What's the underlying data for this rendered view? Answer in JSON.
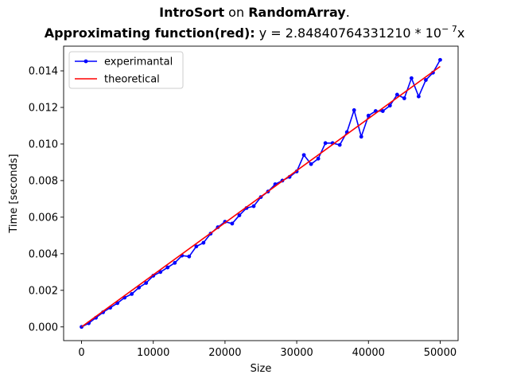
{
  "title": {
    "line1_bold_a": "IntroSort",
    "line1_plain": " on ",
    "line1_bold_b": "RandomArray",
    "line1_end": ".",
    "line2_bold": "Approximating function(red):",
    "line2_plain": " y = 2.84840764331210 * 10",
    "line2_exponent": "− 7",
    "line2_end": "x"
  },
  "chart_data": {
    "type": "line",
    "xlabel": "Size",
    "ylabel": "Time [seconds]",
    "xlim": [
      -2500,
      52500
    ],
    "ylim": [
      -0.00075,
      0.01535
    ],
    "x_ticks": [
      0,
      10000,
      20000,
      30000,
      40000,
      50000
    ],
    "x_tick_labels": [
      "0",
      "10000",
      "20000",
      "30000",
      "40000",
      "50000"
    ],
    "y_ticks": [
      0.0,
      0.002,
      0.004,
      0.006,
      0.008,
      0.01,
      0.012,
      0.014
    ],
    "y_tick_labels": [
      "0.000",
      "0.002",
      "0.004",
      "0.006",
      "0.008",
      "0.010",
      "0.012",
      "0.014"
    ],
    "grid": false,
    "legend_position": "upper-left",
    "series": [
      {
        "name": "experimantal",
        "color": "#0000ff",
        "marker": "dot",
        "x": [
          0,
          1000,
          2000,
          3000,
          4000,
          5000,
          6000,
          7000,
          8000,
          9000,
          10000,
          11000,
          12000,
          13000,
          14000,
          15000,
          16000,
          17000,
          18000,
          19000,
          20000,
          21000,
          22000,
          23000,
          24000,
          25000,
          26000,
          27000,
          28000,
          29000,
          30000,
          31000,
          32000,
          33000,
          34000,
          35000,
          36000,
          37000,
          38000,
          39000,
          40000,
          41000,
          42000,
          43000,
          44000,
          45000,
          46000,
          47000,
          48000,
          49000,
          50000
        ],
        "y": [
          0.0,
          0.0002,
          0.0005,
          0.0008,
          0.00105,
          0.0013,
          0.0016,
          0.0018,
          0.00215,
          0.0024,
          0.0028,
          0.003,
          0.00325,
          0.0035,
          0.0039,
          0.00385,
          0.0044,
          0.0046,
          0.0051,
          0.00545,
          0.00575,
          0.00565,
          0.0061,
          0.0065,
          0.0066,
          0.0071,
          0.0074,
          0.0078,
          0.008,
          0.0082,
          0.0085,
          0.0094,
          0.0089,
          0.0092,
          0.01005,
          0.01005,
          0.00995,
          0.01065,
          0.01185,
          0.0104,
          0.01155,
          0.0118,
          0.0118,
          0.0121,
          0.0127,
          0.0125,
          0.0136,
          0.0126,
          0.0135,
          0.0139,
          0.0146
        ]
      },
      {
        "name": "theoretical",
        "color": "#ff0000",
        "x": [
          0,
          50000
        ],
        "y": [
          0.0,
          0.014242
        ]
      }
    ]
  }
}
